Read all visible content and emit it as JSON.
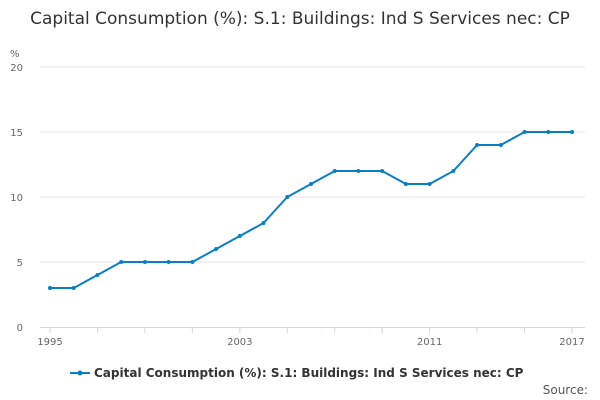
{
  "chart_data": {
    "type": "line",
    "title": "Capital Consumption (%): S.1: Buildings: Ind S Services nec: CP",
    "ylabel": "%",
    "xlabel": "",
    "ylim": [
      0,
      20
    ],
    "yticks": [
      "0",
      "5",
      "10",
      "15",
      "20"
    ],
    "xticklabels": [
      "1995",
      "2003",
      "2011",
      "2017"
    ],
    "grid": true,
    "legend_position": "bottom",
    "color": "#0a7ec2",
    "x": [
      1995,
      1996,
      1997,
      1998,
      1999,
      2000,
      2001,
      2002,
      2003,
      2004,
      2005,
      2006,
      2007,
      2008,
      2009,
      2010,
      2011,
      2012,
      2013,
      2014,
      2015,
      2016,
      2017
    ],
    "series": [
      {
        "name": "Capital Consumption (%): S.1: Buildings: Ind S Services nec: CP",
        "values": [
          3,
          3,
          4,
          5,
          5,
          5,
          5,
          6,
          7,
          8,
          10,
          11,
          12,
          12,
          12,
          11,
          11,
          12,
          14,
          14,
          15,
          15,
          15
        ]
      }
    ]
  },
  "source_label": "Source:"
}
